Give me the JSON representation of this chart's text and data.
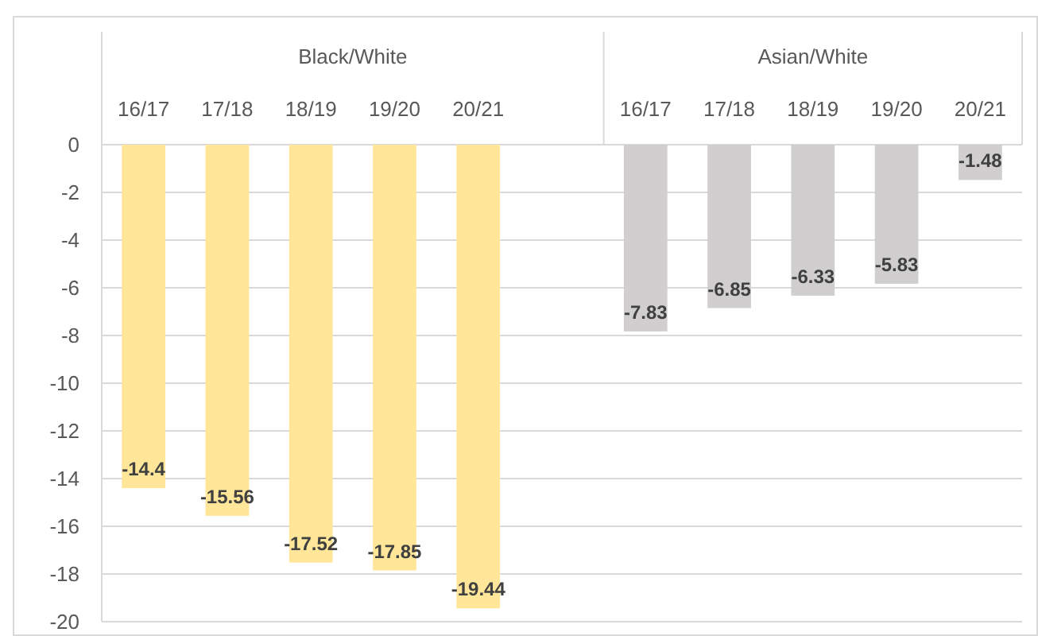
{
  "chart_data": {
    "type": "bar",
    "categories": [
      "16/17",
      "17/18",
      "18/19",
      "19/20",
      "20/21",
      null,
      "16/17",
      "17/18",
      "18/19",
      "19/20",
      "20/21"
    ],
    "series": [
      {
        "color": "#ffe699",
        "values": [
          -14.4,
          -15.56,
          -17.52,
          -17.85,
          -19.44,
          null,
          null,
          null,
          null,
          null,
          null
        ]
      },
      {
        "color": "#d0cece",
        "values": [
          null,
          null,
          null,
          null,
          null,
          null,
          -7.83,
          -6.85,
          -6.33,
          -5.83,
          -1.48
        ]
      }
    ],
    "ylim": [
      -20,
      0
    ],
    "yticks": [
      0,
      -2,
      -4,
      -6,
      -8,
      -10,
      -12,
      -14,
      -16,
      -18,
      -20
    ],
    "grid": "y",
    "data_labels": true,
    "annotations": [
      "Black/White",
      "Asian/White"
    ]
  }
}
